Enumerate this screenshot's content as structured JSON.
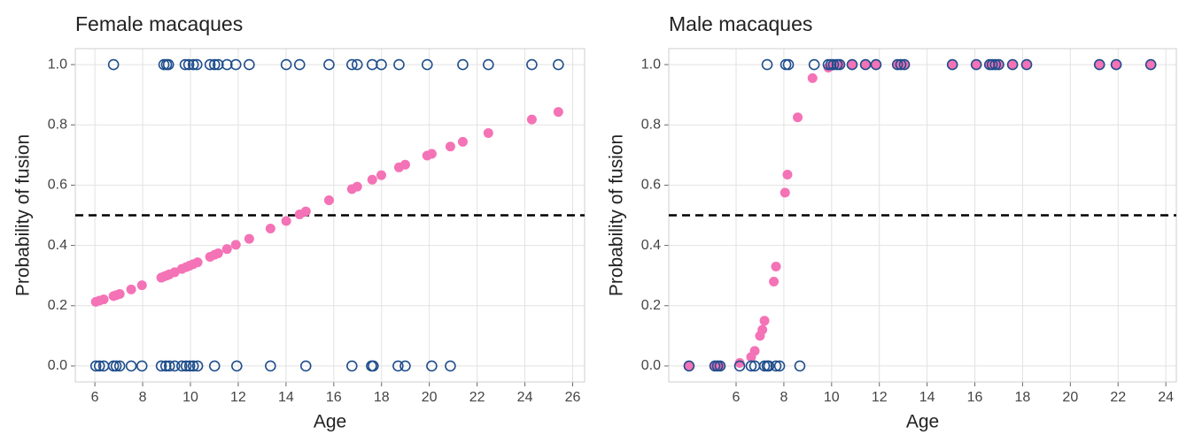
{
  "chart_data": [
    {
      "type": "scatter",
      "title": "Female macaques",
      "xlabel": "Age",
      "ylabel": "Probability of fusion",
      "xlim": [
        5.18,
        26.5
      ],
      "ylim": [
        -0.053,
        1.053
      ],
      "xticks": [
        6,
        8,
        10,
        12,
        14,
        16,
        18,
        20,
        22,
        24,
        26
      ],
      "yticks": [
        {
          "value": 0,
          "label": "0.0"
        },
        {
          "value": 0.2,
          "label": "0.2"
        },
        {
          "value": 0.4,
          "label": "0.4"
        },
        {
          "value": 0.6,
          "label": "0.6"
        },
        {
          "value": 0.8,
          "label": "0.8"
        },
        {
          "value": 1,
          "label": "1.0"
        }
      ],
      "grid": true,
      "hline": 0.5,
      "series": [
        {
          "color": "#f472b6",
          "marker": "filled",
          "x": [
            6.04,
            6.19,
            6.37,
            6.78,
            6.89,
            7.04,
            7.52,
            7.97,
            8.78,
            8.89,
            9.0,
            9.12,
            9.34,
            9.64,
            9.82,
            9.97,
            10.12,
            10.3,
            10.82,
            11.01,
            11.16,
            11.53,
            11.9,
            12.46,
            13.35,
            14.01,
            14.57,
            14.83,
            15.8,
            16.76,
            16.98,
            17.61,
            17.99,
            18.73,
            18.99,
            19.91,
            20.1,
            20.88,
            21.4,
            22.47,
            24.29,
            25.4
          ],
          "values": [
            0.213,
            0.217,
            0.221,
            0.232,
            0.235,
            0.239,
            0.254,
            0.268,
            0.293,
            0.297,
            0.3,
            0.304,
            0.311,
            0.322,
            0.328,
            0.333,
            0.338,
            0.344,
            0.362,
            0.369,
            0.374,
            0.388,
            0.402,
            0.422,
            0.456,
            0.481,
            0.503,
            0.513,
            0.55,
            0.587,
            0.595,
            0.618,
            0.633,
            0.659,
            0.668,
            0.698,
            0.704,
            0.728,
            0.744,
            0.773,
            0.818,
            0.843
          ]
        },
        {
          "color": "#1f4e8c",
          "marker": "open",
          "x": [
            6.78,
            8.89,
            9.0,
            9.08,
            9.78,
            9.93,
            10.12,
            10.27,
            10.82,
            11.01,
            11.16,
            11.53,
            11.9,
            12.46,
            14.01,
            14.57,
            15.8,
            16.76,
            16.98,
            17.61,
            17.99,
            18.73,
            19.91,
            21.4,
            22.47,
            24.29,
            25.4,
            6.04,
            6.19,
            6.37,
            6.78,
            6.89,
            7.04,
            7.52,
            7.97,
            8.78,
            8.97,
            9.12,
            9.34,
            9.64,
            9.82,
            9.97,
            10.12,
            10.3,
            11.01,
            11.94,
            13.35,
            14.83,
            16.76,
            17.58,
            17.65,
            18.69,
            18.99,
            20.1,
            20.88
          ],
          "values": [
            1,
            1,
            1,
            1,
            1,
            1,
            1,
            1,
            1,
            1,
            1,
            1,
            1,
            1,
            1,
            1,
            1,
            1,
            1,
            1,
            1,
            1,
            1,
            1,
            1,
            1,
            1,
            0,
            0,
            0,
            0,
            0,
            0,
            0,
            0,
            0,
            0,
            0,
            0,
            0,
            0,
            0,
            0,
            0,
            0,
            0,
            0,
            0,
            0,
            0,
            0,
            0,
            0,
            0,
            0
          ]
        }
      ]
    },
    {
      "type": "scatter",
      "title": "Male macaques",
      "xlabel": "Age",
      "ylabel": "Probability of fusion",
      "xlim": [
        3.18,
        24.44
      ],
      "ylim": [
        -0.053,
        1.053
      ],
      "xticks": [
        6,
        8,
        10,
        12,
        14,
        16,
        18,
        20,
        22,
        24
      ],
      "yticks": [
        {
          "value": 0,
          "label": "0.0"
        },
        {
          "value": 0.2,
          "label": "0.2"
        },
        {
          "value": 0.4,
          "label": "0.4"
        },
        {
          "value": 0.6,
          "label": "0.6"
        },
        {
          "value": 0.8,
          "label": "0.8"
        },
        {
          "value": 1,
          "label": "1.0"
        }
      ],
      "grid": true,
      "hline": 0.5,
      "series": [
        {
          "color": "#f472b6",
          "marker": "filled",
          "x": [
            4.03,
            5.11,
            5.22,
            5.33,
            6.15,
            6.63,
            6.78,
            7.0,
            7.1,
            7.19,
            7.58,
            7.67,
            8.05,
            8.15,
            8.58,
            9.2,
            9.86,
            9.97,
            10.08,
            10.23,
            10.34,
            10.86,
            11.42,
            11.86,
            12.76,
            12.9,
            13.05,
            15.06,
            16.06,
            16.62,
            16.73,
            16.86,
            17.0,
            17.58,
            18.17,
            21.22,
            21.92,
            23.37
          ],
          "values": [
            0,
            0,
            0,
            0,
            0.01,
            0.03,
            0.05,
            0.1,
            0.12,
            0.15,
            0.28,
            0.33,
            0.575,
            0.635,
            0.825,
            0.955,
            0.99,
            0.995,
            1,
            1,
            1,
            1,
            1,
            1,
            1,
            1,
            1,
            1,
            1,
            1,
            1,
            1,
            1,
            1,
            1,
            1,
            1,
            1
          ]
        },
        {
          "color": "#1f4e8c",
          "marker": "open",
          "x": [
            7.3,
            8.08,
            8.19,
            9.27,
            9.86,
            9.97,
            10.08,
            10.23,
            10.34,
            10.86,
            11.42,
            11.86,
            12.76,
            12.9,
            13.05,
            15.06,
            16.06,
            16.62,
            16.73,
            16.86,
            17.0,
            17.58,
            18.17,
            21.22,
            21.92,
            23.37,
            4.03,
            5.11,
            5.22,
            5.33,
            6.15,
            6.63,
            6.78,
            7.19,
            7.3,
            7.37,
            7.67,
            7.82,
            8.67
          ],
          "values": [
            1,
            1,
            1,
            1,
            1,
            1,
            1,
            1,
            1,
            1,
            1,
            1,
            1,
            1,
            1,
            1,
            1,
            1,
            1,
            1,
            1,
            1,
            1,
            1,
            1,
            1,
            0,
            0,
            0,
            0,
            0,
            0,
            0,
            0,
            0,
            0,
            0,
            0,
            0
          ]
        }
      ]
    }
  ]
}
